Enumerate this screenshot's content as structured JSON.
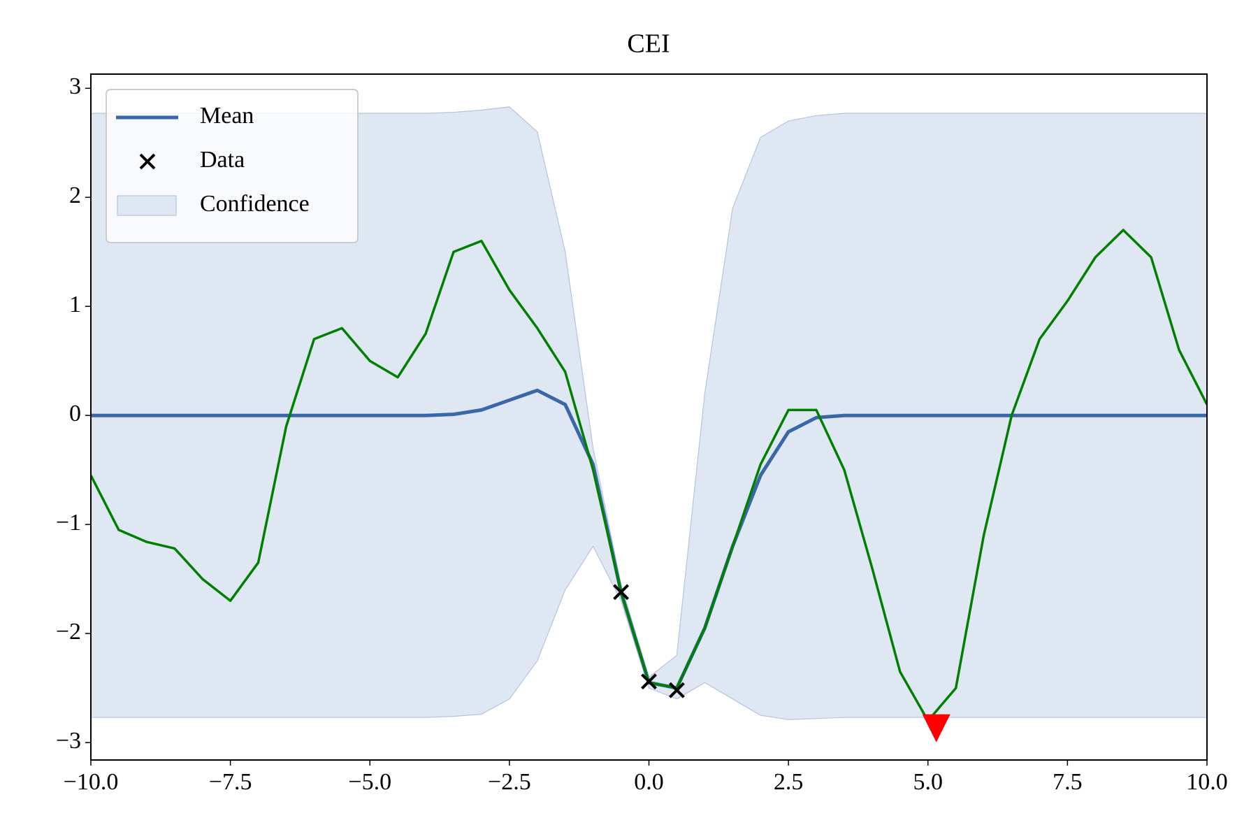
{
  "chart_data": {
    "type": "line",
    "title": "CEI",
    "x": [
      -10,
      -9.5,
      -9,
      -8.5,
      -8,
      -7.5,
      -7,
      -6.5,
      -6,
      -5.5,
      -5,
      -4.5,
      -4,
      -3.5,
      -3,
      -2.5,
      -2,
      -1.5,
      -1,
      -0.5,
      0,
      0.5,
      1,
      1.5,
      2,
      2.5,
      3,
      3.5,
      4,
      4.5,
      5,
      5.5,
      6,
      6.5,
      7,
      7.5,
      8,
      8.5,
      9,
      9.5,
      10
    ],
    "series": [
      {
        "type": "band",
        "name": "Confidence",
        "color": "#dfe7f2",
        "upper": [
          2.77,
          2.77,
          2.77,
          2.77,
          2.77,
          2.77,
          2.77,
          2.77,
          2.77,
          2.77,
          2.77,
          2.77,
          2.77,
          2.78,
          2.8,
          2.83,
          2.6,
          1.5,
          -0.3,
          -1.55,
          -2.4,
          -2.2,
          0.2,
          1.9,
          2.55,
          2.7,
          2.75,
          2.77,
          2.77,
          2.77,
          2.77,
          2.77,
          2.77,
          2.77,
          2.77,
          2.77,
          2.77,
          2.77,
          2.77,
          2.77,
          2.77
        ],
        "lower": [
          -2.77,
          -2.77,
          -2.77,
          -2.77,
          -2.77,
          -2.77,
          -2.77,
          -2.77,
          -2.77,
          -2.77,
          -2.77,
          -2.77,
          -2.77,
          -2.76,
          -2.74,
          -2.6,
          -2.25,
          -1.6,
          -1.2,
          -1.7,
          -2.5,
          -2.6,
          -2.45,
          -2.6,
          -2.75,
          -2.79,
          -2.78,
          -2.77,
          -2.77,
          -2.77,
          -2.77,
          -2.77,
          -2.77,
          -2.77,
          -2.77,
          -2.77,
          -2.77,
          -2.77,
          -2.77,
          -2.77,
          -2.77
        ]
      },
      {
        "type": "line",
        "name": "Mean",
        "color": "#3a67a8",
        "values": [
          0,
          0,
          0,
          0,
          0,
          0,
          0,
          0,
          0,
          0,
          0,
          0,
          0,
          0.01,
          0.05,
          0.14,
          0.23,
          0.1,
          -0.45,
          -1.62,
          -2.45,
          -2.5,
          -1.95,
          -1.2,
          -0.55,
          -0.15,
          -0.02,
          0,
          0,
          0,
          0,
          0,
          0,
          0,
          0,
          0,
          0,
          0,
          0,
          0,
          0
        ]
      },
      {
        "type": "line",
        "color": "#008000",
        "values": [
          -0.55,
          -1.05,
          -1.16,
          -1.22,
          -1.5,
          -1.7,
          -1.35,
          -0.1,
          0.7,
          0.8,
          0.5,
          0.35,
          0.75,
          1.5,
          1.6,
          1.15,
          0.8,
          0.4,
          -0.5,
          -1.62,
          -2.45,
          -2.5,
          -1.95,
          -1.2,
          -0.45,
          0.05,
          0.05,
          -0.5,
          -1.4,
          -2.35,
          -2.8,
          -2.5,
          -1.1,
          0.0,
          0.7,
          1.05,
          1.45,
          1.7,
          1.45,
          0.6,
          0.1
        ]
      },
      {
        "type": "scatter",
        "name": "Data",
        "color": "#000000",
        "x": [
          -0.5,
          0.0,
          0.5
        ],
        "values": [
          -1.62,
          -2.44,
          -2.52
        ]
      },
      {
        "type": "marker",
        "color": "#ff0000",
        "x": [
          5.15
        ],
        "values": [
          -2.85
        ]
      }
    ],
    "xlim": [
      -10,
      10
    ],
    "ylim": [
      -3.16,
      3.13
    ],
    "xticks": [
      {
        "value": -10,
        "label": "−10.0"
      },
      {
        "value": -7.5,
        "label": "−7.5"
      },
      {
        "value": -5,
        "label": "−5.0"
      },
      {
        "value": -2.5,
        "label": "−2.5"
      },
      {
        "value": 0,
        "label": "0.0"
      },
      {
        "value": 2.5,
        "label": "2.5"
      },
      {
        "value": 5,
        "label": "5.0"
      },
      {
        "value": 7.5,
        "label": "7.5"
      },
      {
        "value": 10,
        "label": "10.0"
      }
    ],
    "yticks": [
      {
        "value": -3,
        "label": "−3"
      },
      {
        "value": -2,
        "label": "−2"
      },
      {
        "value": -1,
        "label": "−1"
      },
      0,
      1,
      2,
      3
    ],
    "legend": "upper left"
  }
}
